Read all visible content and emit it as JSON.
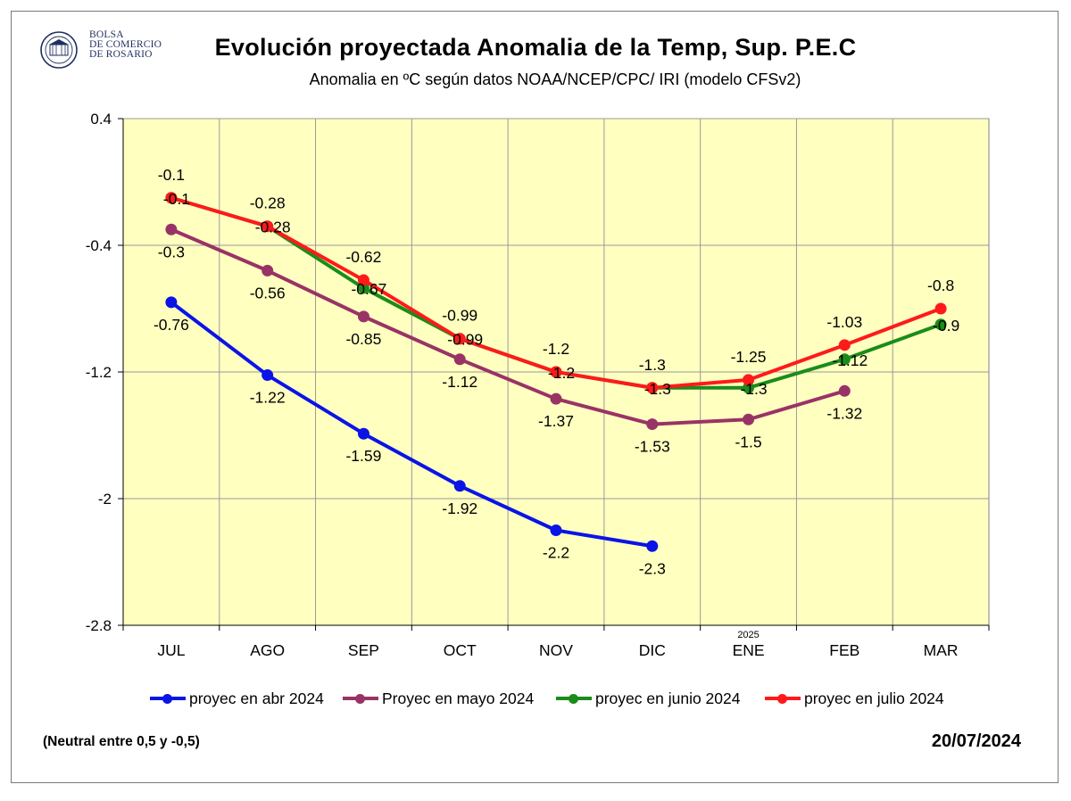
{
  "header": {
    "logo_lines": [
      "BOLSA",
      "DE COMERCIO",
      "DE ROSARIO"
    ],
    "title": "Evolución proyectada Anomalia de la Temp, Sup.  P.E.C",
    "subtitle": "Anomalia en ºC según datos NOAA/NCEP/CPC/ IRI (modelo CFSv2)"
  },
  "footer": {
    "note": "(Neutral entre 0,5 y -0,5)",
    "date": "20/07/2024"
  },
  "colors": {
    "plot_background": "#ffffc0",
    "grid": "#9a9a9a",
    "logo": "#1f2f5e"
  },
  "chart_data": {
    "type": "line",
    "categories": [
      "JUL",
      "AGO",
      "SEP",
      "OCT",
      "NOV",
      "DIC",
      "ENE",
      "FEB",
      "MAR"
    ],
    "category_note": {
      "index": 6,
      "text": "2025"
    },
    "yticks": [
      0.4,
      -0.4,
      -1.2,
      -2,
      -2.8
    ],
    "ylim": [
      -2.8,
      0.4
    ],
    "grid": true,
    "legend_position": "bottom",
    "series": [
      {
        "name": "proyec en abr 2024",
        "color": "#0a14e6",
        "values": [
          -0.76,
          -1.22,
          -1.59,
          -1.92,
          -2.2,
          -2.3,
          null,
          null,
          null
        ],
        "labels": [
          "-0.76",
          "-1.22",
          "-1.59",
          "-1.92",
          "-2.2",
          "-2.3",
          null,
          null,
          null
        ],
        "label_pos": [
          "below",
          "below",
          "below",
          "below",
          "below",
          "below",
          null,
          null,
          null
        ]
      },
      {
        "name": "Proyec en mayo 2024",
        "color": "#993366",
        "values": [
          -0.3,
          -0.56,
          -0.85,
          -1.12,
          -1.37,
          -1.53,
          -1.5,
          -1.32,
          null
        ],
        "labels": [
          "-0.3",
          "-0.56",
          "-0.85",
          "-1.12",
          "-1.37",
          "-1.53",
          "-1.5",
          "-1.32",
          null
        ],
        "label_pos": [
          "below",
          "below",
          "below",
          "below",
          "below",
          "below",
          "below",
          "below",
          null
        ]
      },
      {
        "name": "proyec en  junio 2024",
        "color": "#1a8c1a",
        "values": [
          -0.1,
          -0.28,
          -0.67,
          -0.99,
          -1.2,
          -1.3,
          -1.3,
          -1.12,
          -0.9
        ],
        "labels": [
          "-0.1",
          "-0.28",
          "-0.67",
          "-0.99",
          "-1.2",
          "-1.3",
          "-1.3",
          "-1.12",
          "-0.9"
        ],
        "label_pos": [
          "on",
          "on",
          "on",
          "on",
          "on",
          "on",
          "on",
          "on",
          "on"
        ]
      },
      {
        "name": "proyec en julio 2024",
        "color": "#ff1a1a",
        "values": [
          -0.1,
          -0.28,
          -0.62,
          -0.99,
          -1.2,
          -1.3,
          -1.25,
          -1.03,
          -0.8
        ],
        "labels": [
          "-0.1",
          "-0.28",
          "-0.62",
          "-0.99",
          "-1.2",
          "-1.3",
          "-1.25",
          "-1.03",
          "-0.8"
        ],
        "label_pos": [
          "above",
          "above",
          "above",
          "above",
          "above",
          "above",
          "above",
          "above",
          "above"
        ]
      }
    ]
  }
}
